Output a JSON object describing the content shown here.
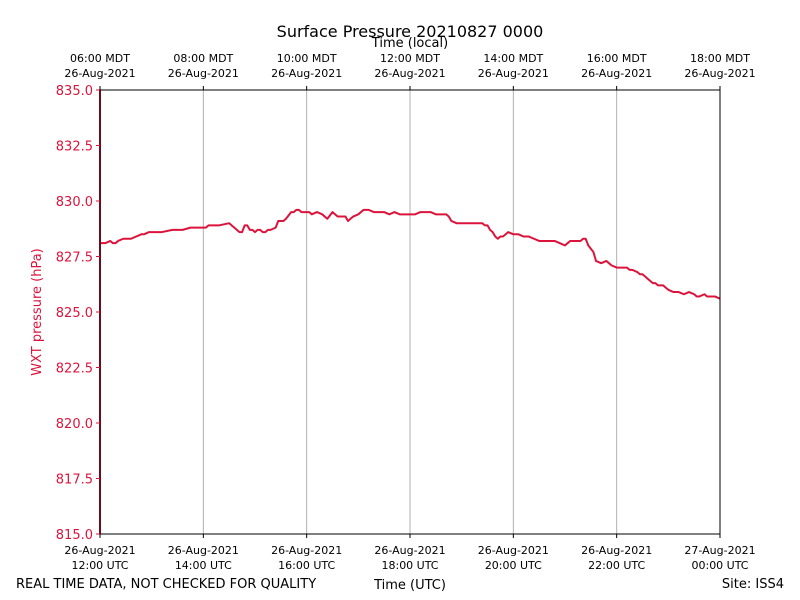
{
  "chart_data": {
    "type": "line",
    "title": "Surface Pressure 20210827 0000",
    "xlabel": "Time (UTC)",
    "xlabel_top": "Time (local)",
    "ylabel": "WXT pressure (hPa)",
    "ylim": [
      815.0,
      835.0
    ],
    "xlim_hours_utc": [
      12,
      24
    ],
    "grid": "vertical",
    "yticks": [
      815.0,
      817.5,
      820.0,
      822.5,
      825.0,
      827.5,
      830.0,
      832.5,
      835.0
    ],
    "ytick_labels": [
      "815.0",
      "817.5",
      "820.0",
      "822.5",
      "825.0",
      "827.5",
      "830.0",
      "832.5",
      "835.0"
    ],
    "xticks_bottom": [
      {
        "hour": 12,
        "line1": "26-Aug-2021",
        "line2": "12:00 UTC"
      },
      {
        "hour": 14,
        "line1": "26-Aug-2021",
        "line2": "14:00 UTC"
      },
      {
        "hour": 16,
        "line1": "26-Aug-2021",
        "line2": "16:00 UTC"
      },
      {
        "hour": 18,
        "line1": "26-Aug-2021",
        "line2": "18:00 UTC"
      },
      {
        "hour": 20,
        "line1": "26-Aug-2021",
        "line2": "20:00 UTC"
      },
      {
        "hour": 22,
        "line1": "26-Aug-2021",
        "line2": "22:00 UTC"
      },
      {
        "hour": 24,
        "line1": "27-Aug-2021",
        "line2": "00:00 UTC"
      }
    ],
    "xticks_top": [
      {
        "hour": 12,
        "line1": "06:00 MDT",
        "line2": "26-Aug-2021"
      },
      {
        "hour": 14,
        "line1": "08:00 MDT",
        "line2": "26-Aug-2021"
      },
      {
        "hour": 16,
        "line1": "10:00 MDT",
        "line2": "26-Aug-2021"
      },
      {
        "hour": 18,
        "line1": "12:00 MDT",
        "line2": "26-Aug-2021"
      },
      {
        "hour": 20,
        "line1": "14:00 MDT",
        "line2": "26-Aug-2021"
      },
      {
        "hour": 22,
        "line1": "16:00 MDT",
        "line2": "26-Aug-2021"
      },
      {
        "hour": 24,
        "line1": "18:00 MDT",
        "line2": "26-Aug-2021"
      }
    ],
    "series": [
      {
        "name": "WXT pressure",
        "color": "#dc143c",
        "x": [
          12.0,
          12.0,
          12.0,
          12.1,
          12.2,
          12.25,
          12.3,
          12.35,
          12.45,
          12.5,
          12.6,
          12.8,
          12.85,
          12.95,
          13.1,
          13.2,
          13.4,
          13.5,
          13.6,
          13.75,
          13.8,
          13.9,
          14.05,
          14.1,
          14.2,
          14.3,
          14.5,
          14.6,
          14.7,
          14.75,
          14.8,
          14.85,
          14.9,
          14.95,
          15.0,
          15.05,
          15.1,
          15.15,
          15.2,
          15.25,
          15.3,
          15.4,
          15.45,
          15.55,
          15.6,
          15.7,
          15.75,
          15.8,
          15.85,
          15.9,
          15.95,
          16.0,
          16.05,
          16.1,
          16.2,
          16.3,
          16.4,
          16.5,
          16.6,
          16.65,
          16.75,
          16.8,
          16.9,
          17.0,
          17.1,
          17.2,
          17.3,
          17.4,
          17.5,
          17.6,
          17.7,
          17.8,
          17.9,
          18.0,
          18.1,
          18.2,
          18.4,
          18.5,
          18.6,
          18.7,
          18.75,
          18.8,
          18.9,
          19.2,
          19.4,
          19.45,
          19.5,
          19.55,
          19.6,
          19.65,
          19.7,
          19.75,
          19.8,
          19.9,
          20.0,
          20.1,
          20.2,
          20.3,
          20.4,
          20.5,
          20.6,
          20.8,
          20.9,
          21.0,
          21.05,
          21.1,
          21.2,
          21.3,
          21.35,
          21.4,
          21.45,
          21.55,
          21.6,
          21.7,
          21.8,
          21.9,
          22.0,
          22.2,
          22.25,
          22.3,
          22.4,
          22.45,
          22.5,
          22.6,
          22.7,
          22.75,
          22.8,
          22.9,
          22.95,
          23.0,
          23.1,
          23.15,
          23.2,
          23.3,
          23.4,
          23.5,
          23.55,
          23.6,
          23.7,
          23.75,
          23.8,
          23.9,
          24.0
        ],
        "y": [
          815.0,
          835.0,
          828.1,
          828.1,
          828.2,
          828.1,
          828.1,
          828.2,
          828.3,
          828.3,
          828.3,
          828.5,
          828.5,
          828.6,
          828.6,
          828.6,
          828.7,
          828.7,
          828.7,
          828.8,
          828.8,
          828.8,
          828.8,
          828.9,
          828.9,
          828.9,
          829.0,
          828.8,
          828.6,
          828.6,
          828.9,
          828.9,
          828.7,
          828.7,
          828.6,
          828.7,
          828.7,
          828.6,
          828.6,
          828.7,
          828.7,
          828.8,
          829.1,
          829.1,
          829.2,
          829.5,
          829.5,
          829.6,
          829.6,
          829.5,
          829.5,
          829.5,
          829.5,
          829.4,
          829.5,
          829.4,
          829.2,
          829.5,
          829.3,
          829.3,
          829.3,
          829.1,
          829.3,
          829.4,
          829.6,
          829.6,
          829.5,
          829.5,
          829.5,
          829.4,
          829.5,
          829.4,
          829.4,
          829.4,
          829.4,
          829.5,
          829.5,
          829.4,
          829.4,
          829.4,
          829.3,
          829.1,
          829.0,
          829.0,
          829.0,
          828.9,
          828.9,
          828.7,
          828.6,
          828.4,
          828.3,
          828.4,
          828.4,
          828.6,
          828.5,
          828.5,
          828.4,
          828.4,
          828.3,
          828.2,
          828.2,
          828.2,
          828.1,
          828.0,
          828.1,
          828.2,
          828.2,
          828.2,
          828.3,
          828.3,
          828.0,
          827.7,
          827.3,
          827.2,
          827.3,
          827.1,
          827.0,
          827.0,
          826.9,
          826.9,
          826.8,
          826.7,
          826.7,
          826.5,
          826.3,
          826.3,
          826.2,
          826.2,
          826.1,
          826.0,
          825.9,
          825.9,
          825.9,
          825.8,
          825.9,
          825.8,
          825.7,
          825.7,
          825.8,
          825.7,
          825.7,
          825.7,
          825.6
        ]
      }
    ]
  },
  "footer": {
    "disclaimer": "REAL TIME DATA, NOT CHECKED FOR QUALITY",
    "site": "Site: ISS4"
  }
}
